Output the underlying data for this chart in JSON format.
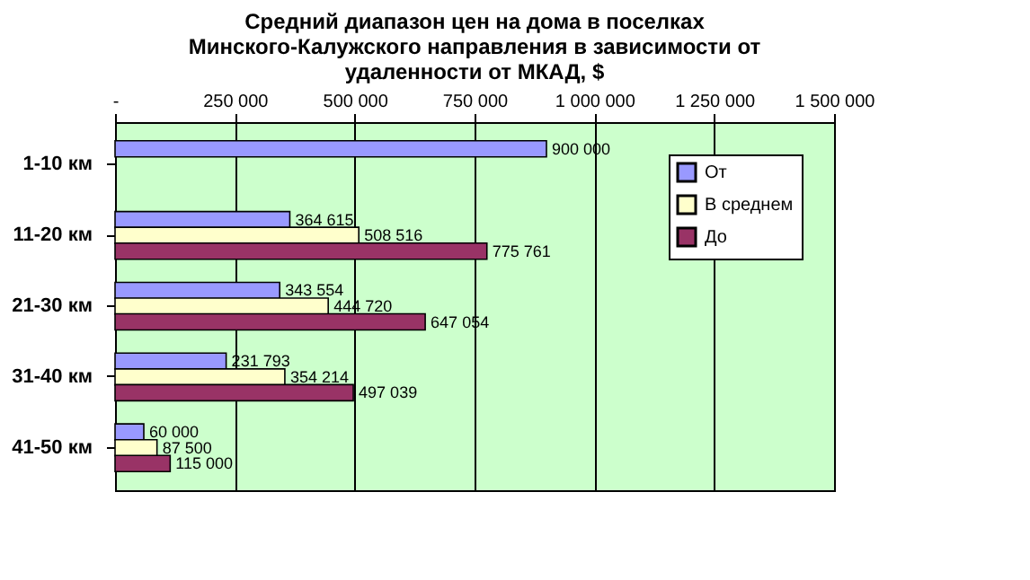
{
  "chart_data": {
    "type": "bar",
    "orientation": "horizontal",
    "title": "Средний диапазон цен на дома в поселках\nМинского-Калужского направления в зависимости от\nудаленности от МКАД, $",
    "categories": [
      "1-10 км",
      "11-20 км",
      "21-30 км",
      "31-40 км",
      "41-50 км"
    ],
    "series": [
      {
        "name": "От",
        "color": "#9999ff",
        "values": [
          900000,
          364615,
          343554,
          231793,
          60000
        ]
      },
      {
        "name": "В среднем",
        "color": "#ffffcc",
        "values": [
          null,
          508516,
          444720,
          354214,
          87500
        ]
      },
      {
        "name": "До",
        "color": "#993366",
        "values": [
          null,
          775761,
          647054,
          497039,
          115000
        ]
      }
    ],
    "xlim": [
      0,
      1500000
    ],
    "xticks": [
      {
        "value": 0,
        "label": "-"
      },
      {
        "value": 250000,
        "label": "250 000"
      },
      {
        "value": 500000,
        "label": "500 000"
      },
      {
        "value": 750000,
        "label": "750 000"
      },
      {
        "value": 1000000,
        "label": "1 000 000"
      },
      {
        "value": 1250000,
        "label": "1 250 000"
      },
      {
        "value": 1500000,
        "label": "1 500 000"
      }
    ],
    "grid": "x",
    "legend": "top right",
    "data_labels": true
  }
}
